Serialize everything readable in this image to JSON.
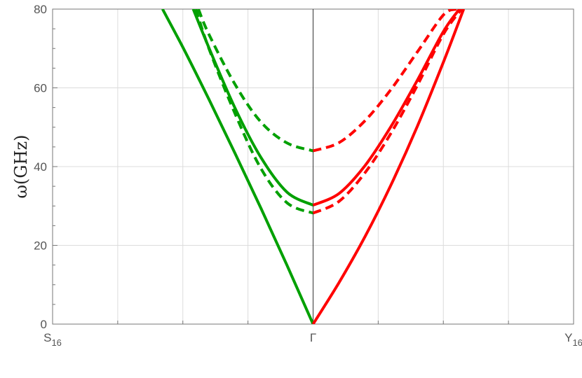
{
  "chart_data": {
    "type": "line",
    "ylabel": "ω(GHz)",
    "ylim": [
      0,
      80
    ],
    "yticks": [
      0,
      20,
      40,
      60,
      80
    ],
    "xlim": [
      -1,
      1
    ],
    "x_tick_labels": [
      {
        "x": -1,
        "main": "S",
        "sub": "16"
      },
      {
        "x": 0,
        "main": "Γ",
        "sub": ""
      },
      {
        "x": 1,
        "main": "Y",
        "sub": "16"
      }
    ],
    "grid": true,
    "series": [
      {
        "color": "#00a000",
        "dash": false,
        "x": [
          -0.578,
          -0.5,
          -0.4,
          -0.3,
          -0.2,
          -0.1,
          0
        ],
        "y": [
          80,
          70.3,
          57.1,
          43.4,
          29.4,
          14.9,
          0
        ]
      },
      {
        "color": "#00a000",
        "dash": false,
        "x": [
          -0.46,
          -0.4,
          -0.3,
          -0.2,
          -0.1,
          0
        ],
        "y": [
          80,
          70.2,
          54.9,
          42.3,
          33.5,
          30.2
        ]
      },
      {
        "color": "#00a000",
        "dash": true,
        "x": [
          -0.45,
          -0.4,
          -0.3,
          -0.2,
          -0.1,
          0
        ],
        "y": [
          80,
          70,
          53.5,
          39.5,
          30.8,
          28.2
        ]
      },
      {
        "color": "#00a000",
        "dash": true,
        "x": [
          -0.44,
          -0.4,
          -0.3,
          -0.2,
          -0.1,
          0
        ],
        "y": [
          80,
          73.6,
          60.9,
          51.3,
          46,
          44
        ]
      },
      {
        "color": "#ff0000",
        "dash": false,
        "x": [
          0,
          0.1,
          0.2,
          0.3,
          0.4,
          0.5,
          0.578
        ],
        "y": [
          0,
          10.6,
          22.3,
          35.5,
          50.2,
          66.5,
          80
        ]
      },
      {
        "color": "#ff0000",
        "dash": false,
        "x": [
          0,
          0.1,
          0.2,
          0.3,
          0.4,
          0.5,
          0.562
        ],
        "y": [
          30.2,
          33.2,
          40.3,
          50.3,
          61.9,
          74.3,
          80
        ]
      },
      {
        "color": "#ff0000",
        "dash": true,
        "x": [
          0,
          0.1,
          0.2,
          0.3,
          0.4,
          0.5,
          0.57
        ],
        "y": [
          28.2,
          31.2,
          38.5,
          48.6,
          60.6,
          73.6,
          80
        ]
      },
      {
        "color": "#ff0000",
        "dash": true,
        "x": [
          0,
          0.1,
          0.2,
          0.3,
          0.4,
          0.5,
          0.55
        ],
        "y": [
          44,
          46.1,
          51.7,
          59.7,
          69.1,
          78.5,
          80
        ]
      }
    ]
  }
}
